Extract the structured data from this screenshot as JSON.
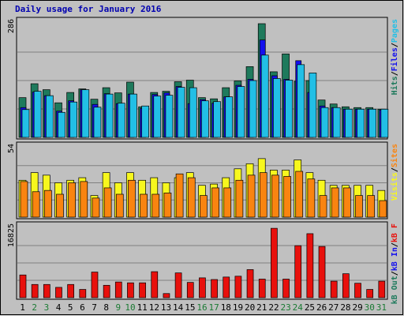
{
  "chart_data": {
    "type": "bar",
    "title": "Daily usage for January 2016",
    "days": [
      "1",
      "2",
      "3",
      "4",
      "5",
      "6",
      "7",
      "8",
      "9",
      "10",
      "11",
      "12",
      "13",
      "14",
      "15",
      "16",
      "17",
      "18",
      "19",
      "20",
      "21",
      "22",
      "23",
      "24",
      "25",
      "26",
      "27",
      "28",
      "29",
      "30",
      "31"
    ],
    "weekend_days": [
      "2",
      "3",
      "9",
      "10",
      "16",
      "17",
      "23",
      "24",
      "30",
      "31"
    ],
    "panels": [
      {
        "id": "hits-panel",
        "ymax_label": "286",
        "ymax": 286,
        "series": [
          {
            "name": "Hits",
            "color": "#1e7a5c",
            "values": [
              100,
              135,
              120,
              87,
              113,
              122,
              96,
              125,
              112,
              139,
              77,
              113,
              116,
              140,
              144,
              100,
              97,
              125,
              142,
              178,
              286,
              165,
              210,
              141,
              143,
              94,
              84,
              77,
              75,
              75,
              71
            ]
          },
          {
            "name": "Files",
            "color": "#1410ee",
            "values": [
              75,
              114,
              105,
              66,
              92,
              120,
              83,
              110,
              85,
              109,
              73,
              108,
              112,
              128,
              85,
              95,
              86,
              102,
              131,
              146,
              245,
              155,
              146,
              193,
              113,
              79,
              75,
              71,
              71,
              71,
              69
            ]
          },
          {
            "name": "Pages",
            "color": "#22bfe6",
            "values": [
              70,
              116,
              105,
              63,
              89,
              120,
              76,
              109,
              86,
              109,
              79,
              104,
              106,
              126,
              125,
              92,
              90,
              102,
              128,
              143,
              207,
              148,
              144,
              183,
              162,
              75,
              75,
              71,
              71,
              71,
              71
            ]
          }
        ]
      },
      {
        "id": "visits-panel",
        "ymax_label": "54",
        "ymax": 54,
        "series": [
          {
            "name": "Visits",
            "color": "#f7f71e",
            "values": [
              29,
              35,
              33,
              27,
              29,
              31,
              17,
              35,
              27,
              35,
              29,
              31,
              27,
              31,
              35,
              25,
              26,
              31,
              38,
              42,
              46,
              37,
              37,
              45,
              35,
              29,
              25,
              25,
              25,
              25,
              21
            ]
          },
          {
            "name": "Sites",
            "color": "#f98410",
            "values": [
              28,
              20,
              21,
              18,
              27,
              28,
              15,
              23,
              18,
              29,
              18,
              18,
              19,
              34,
              31,
              17,
              23,
              23,
              29,
              33,
              35,
              33,
              32,
              36,
              30,
              17,
              23,
              23,
              17,
              17,
              13
            ]
          }
        ]
      },
      {
        "id": "kb-panel",
        "ymax_label": "16825",
        "ymax": 16825,
        "series": [
          {
            "name": "KB F",
            "color": "#e8100c",
            "values": [
              5500,
              3200,
              3200,
              2500,
              3200,
              2000,
              6200,
              3000,
              3800,
              3600,
              3600,
              6300,
              1000,
              6000,
              3700,
              4800,
              4400,
              5000,
              5200,
              6800,
              4500,
              16800,
              4500,
              12600,
              15500,
              12400,
              4000,
              5800,
              3500,
              2000,
              4000
            ]
          }
        ]
      }
    ],
    "legend": [
      {
        "panel": "hits-panel",
        "parts": [
          {
            "text": "Pages",
            "color": "#22bfe6"
          },
          {
            "text": "/",
            "color": "#000000"
          },
          {
            "text": "Files",
            "color": "#1410ee"
          },
          {
            "text": "/",
            "color": "#000000"
          },
          {
            "text": "Hits",
            "color": "#1e7a5c"
          }
        ]
      },
      {
        "panel": "visits-panel",
        "parts": [
          {
            "text": "Sites",
            "color": "#f98410"
          },
          {
            "text": "/",
            "color": "#000000"
          },
          {
            "text": "Visits",
            "color": "#f7f71e"
          }
        ]
      },
      {
        "panel": "kb-panel",
        "parts": [
          {
            "text": "kB F",
            "color": "#e8100c"
          },
          {
            "text": "/",
            "color": "#000000"
          },
          {
            "text": "kB In",
            "color": "#1410ee"
          },
          {
            "text": "/",
            "color": "#000000"
          },
          {
            "text": "kB Out",
            "color": "#1e7a5c"
          }
        ]
      }
    ],
    "colors": {
      "background": "#c0c0c0",
      "title": "#0000b0",
      "weekday_label": "#000000",
      "weekend_label": "#1a7a33",
      "gridline": "#808080"
    }
  }
}
